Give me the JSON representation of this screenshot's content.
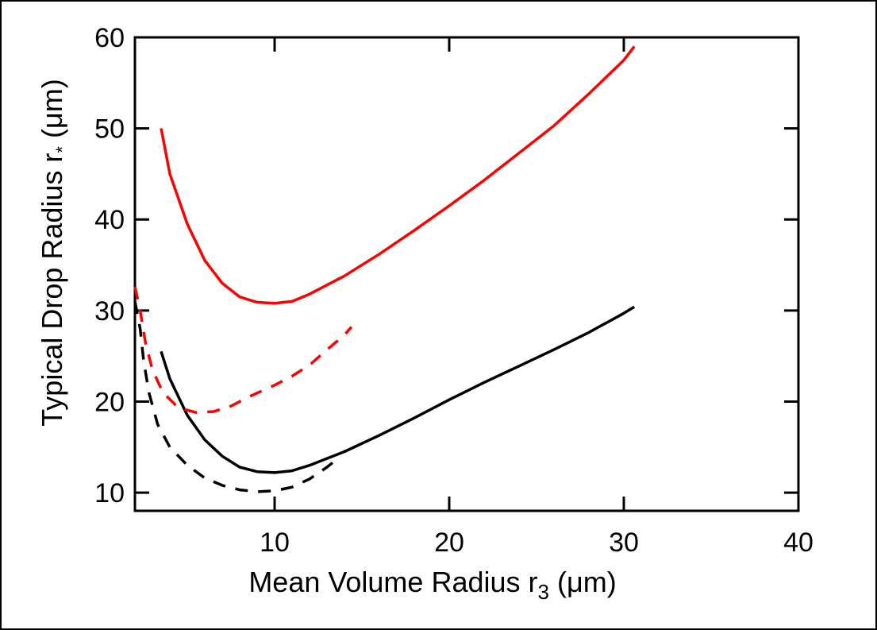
{
  "chart_data": {
    "type": "line",
    "xlabel": "Mean Volume Radius r",
    "xlabel_sub": "3",
    "xlabel_unit": "(μm)",
    "ylabel": "Typical Drop Radius r",
    "ylabel_sub": "*",
    "ylabel_unit": "(μm)",
    "xlim": [
      2,
      40
    ],
    "ylim": [
      8,
      60
    ],
    "x_ticks": [
      10,
      20,
      30,
      40
    ],
    "y_ticks": [
      10,
      20,
      30,
      40,
      50,
      60
    ],
    "grid": false,
    "legend": "none",
    "series": [
      {
        "color": "#ff0000",
        "style": "solid",
        "points": [
          [
            3.5,
            50
          ],
          [
            4,
            45
          ],
          [
            5,
            39.5
          ],
          [
            6,
            35.5
          ],
          [
            7,
            33
          ],
          [
            8,
            31.5
          ],
          [
            9,
            30.9
          ],
          [
            10,
            30.8
          ],
          [
            11,
            31
          ],
          [
            12,
            31.8
          ],
          [
            14,
            33.8
          ],
          [
            16,
            36.2
          ],
          [
            18,
            38.8
          ],
          [
            20,
            41.5
          ],
          [
            22,
            44.3
          ],
          [
            24,
            47.3
          ],
          [
            26,
            50.3
          ],
          [
            28,
            53.8
          ],
          [
            30,
            57.5
          ],
          [
            30.6,
            59
          ]
        ]
      },
      {
        "color": "#000000",
        "style": "solid",
        "points": [
          [
            3.5,
            25.5
          ],
          [
            4,
            22.5
          ],
          [
            5,
            18.5
          ],
          [
            6,
            15.8
          ],
          [
            7,
            14
          ],
          [
            8,
            12.8
          ],
          [
            9,
            12.3
          ],
          [
            10,
            12.2
          ],
          [
            11,
            12.4
          ],
          [
            12,
            13
          ],
          [
            14,
            14.5
          ],
          [
            16,
            16.3
          ],
          [
            18,
            18.2
          ],
          [
            20,
            20.2
          ],
          [
            22,
            22.1
          ],
          [
            24,
            23.9
          ],
          [
            26,
            25.7
          ],
          [
            28,
            27.6
          ],
          [
            30,
            29.7
          ],
          [
            30.6,
            30.4
          ]
        ]
      },
      {
        "color": "#ff0000",
        "style": "dashed",
        "points": [
          [
            2,
            32.6
          ],
          [
            2.3,
            30
          ],
          [
            2.6,
            26.5
          ],
          [
            3,
            23.5
          ],
          [
            3.6,
            21
          ],
          [
            4.5,
            19.3
          ],
          [
            5.5,
            18.8
          ],
          [
            6.5,
            18.9
          ],
          [
            7.5,
            19.5
          ],
          [
            8.5,
            20.5
          ],
          [
            10,
            21.8
          ],
          [
            11,
            22.8
          ],
          [
            12,
            24
          ],
          [
            13,
            25.7
          ],
          [
            14,
            27.3
          ],
          [
            14.4,
            28.2
          ]
        ]
      },
      {
        "color": "#000000",
        "style": "dashed",
        "points": [
          [
            2,
            31
          ],
          [
            2.3,
            28
          ],
          [
            2.5,
            24.5
          ],
          [
            2.8,
            21
          ],
          [
            3.3,
            17.5
          ],
          [
            4,
            15
          ],
          [
            5,
            13
          ],
          [
            6,
            11.6
          ],
          [
            7,
            10.8
          ],
          [
            8,
            10.3
          ],
          [
            9,
            10.1
          ],
          [
            10,
            10.2
          ],
          [
            11,
            10.6
          ],
          [
            12,
            11.5
          ],
          [
            13,
            12.8
          ],
          [
            13.4,
            13.4
          ]
        ]
      }
    ]
  }
}
